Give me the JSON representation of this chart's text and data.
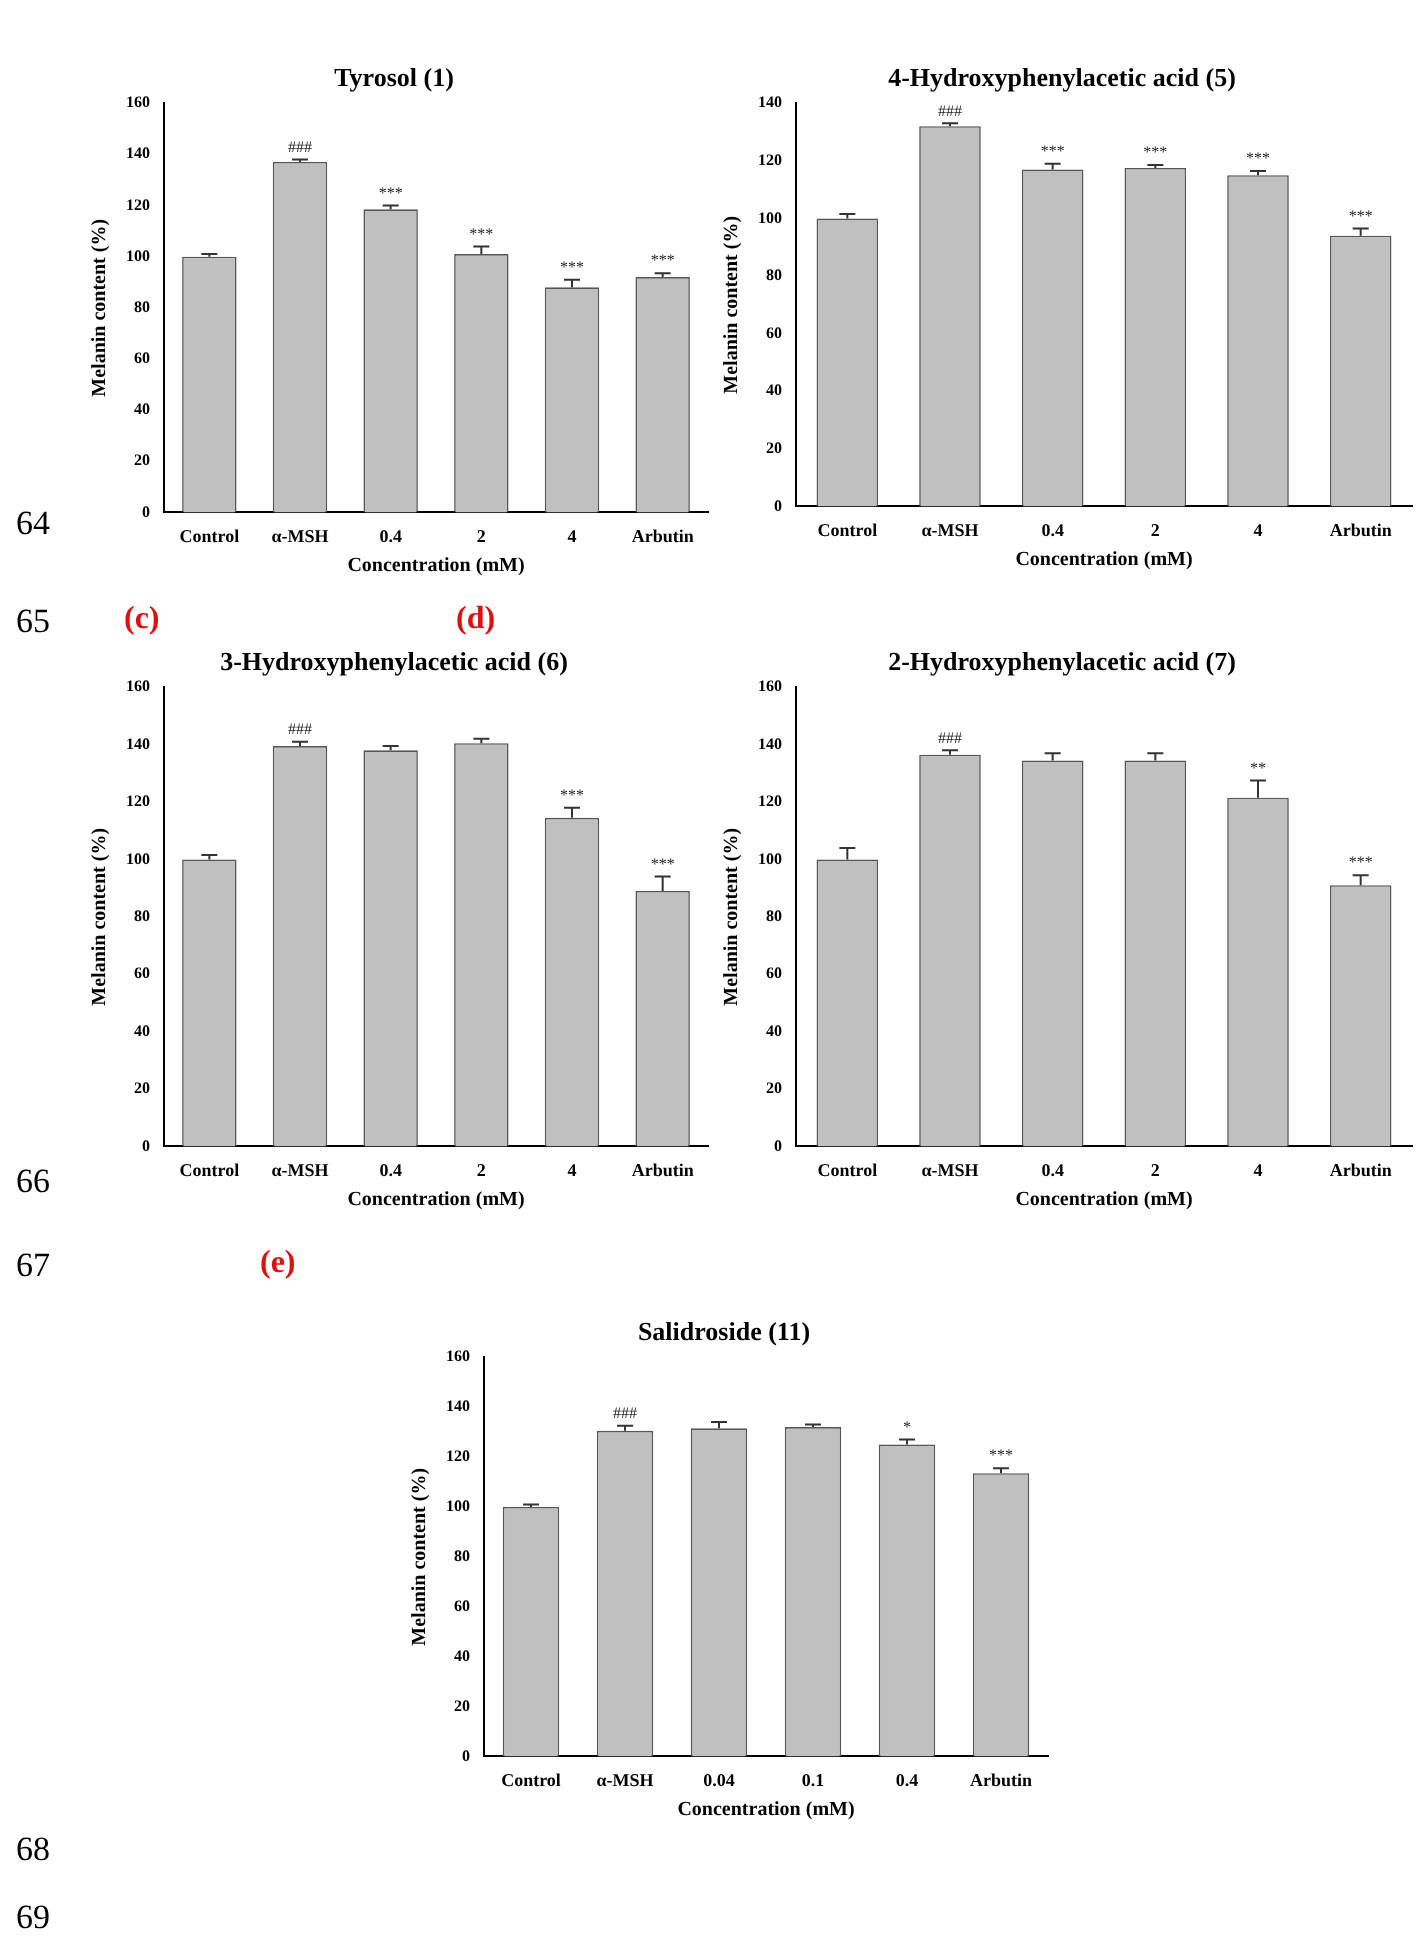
{
  "chart_data": [
    {
      "type": "bar",
      "title": "Tyrosol (1)",
      "xlabel": "Concentration (mM)",
      "ylabel": "Melanin content (%)",
      "categories": [
        "Control",
        "α-MSH",
        "0.4",
        "2",
        "4",
        "Arbutin"
      ],
      "values": [
        100,
        137,
        118.5,
        101,
        88,
        92
      ],
      "errors": [
        [
          100,
          101
        ],
        [
          137,
          138
        ],
        [
          118.5,
          120
        ],
        [
          101,
          104
        ],
        [
          88,
          91
        ],
        [
          92,
          93.5
        ]
      ],
      "color": "#c0c0c0",
      "ylim": [
        0,
        160
      ],
      "yticks": [
        0,
        20,
        40,
        60,
        80,
        100,
        120,
        140,
        160
      ],
      "annotations": [
        {
          "text": "###",
          "x": "α-MSH",
          "y": 138
        },
        {
          "text": "***",
          "x": "0.4",
          "y": 120
        },
        {
          "text": "***",
          "x": "2",
          "y": 104
        },
        {
          "text": "***",
          "x": "4",
          "y": 91
        },
        {
          "text": "***",
          "x": "Arbutin",
          "y": 93.5
        },
        "64"
      ]
    },
    {
      "type": "bar",
      "title": "4-Hydroxyphenylacetic acid (5)",
      "xlabel": "Concentration (mM)",
      "ylabel": "Melanin content (%)",
      "categories": [
        "Control",
        "α-MSH",
        "0.4",
        "2",
        "4",
        "Arbutin"
      ],
      "values": [
        100,
        132,
        117,
        117.5,
        115,
        94
      ],
      "errors": [
        [
          100,
          101.5
        ],
        [
          132,
          133
        ],
        [
          117,
          119
        ],
        [
          117.5,
          118.5
        ],
        [
          115,
          116.5
        ],
        [
          94,
          96.5
        ]
      ],
      "color": "#c0c0c0",
      "ylim": [
        0,
        140
      ],
      "yticks": [
        0,
        20,
        40,
        60,
        80,
        100,
        120,
        140
      ],
      "annotations": [
        {
          "text": "###",
          "x": "α-MSH",
          "y": 133
        },
        {
          "text": "***",
          "x": "0.4",
          "y": 119
        },
        {
          "text": "***",
          "x": "2",
          "y": 118.5
        },
        {
          "text": "***",
          "x": "4",
          "y": 116.5
        },
        {
          "text": "***",
          "x": "Arbutin",
          "y": 96.5
        }
      ]
    },
    {
      "type": "bar",
      "title": "3-Hydroxyphenylacetic acid (6)",
      "xlabel": "Concentration (mM)",
      "ylabel": "Melanin content (%)",
      "categories": [
        "Control",
        "α-MSH",
        "0.4",
        "2",
        "4",
        "Arbutin"
      ],
      "values": [
        100,
        139.5,
        138,
        140.5,
        114.5,
        89
      ],
      "errors": [
        [
          100,
          101.5
        ],
        [
          139.5,
          141
        ],
        [
          138,
          139.5
        ],
        [
          140.5,
          142
        ],
        [
          114.5,
          118
        ],
        [
          89,
          94
        ]
      ],
      "color": "#c0c0c0",
      "ylim": [
        0,
        160
      ],
      "yticks": [
        0,
        20,
        40,
        60,
        80,
        100,
        120,
        140,
        160
      ],
      "annotations": [
        {
          "text": "###",
          "x": "α-MSH",
          "y": 141
        },
        {
          "text": "***",
          "x": "4",
          "y": 118
        },
        {
          "text": "***",
          "x": "Arbutin",
          "y": 94
        },
        "65",
        "(c)",
        "66"
      ]
    },
    {
      "type": "bar",
      "title": "2-Hydroxyphenylacetic acid (7)",
      "xlabel": "Concentration (mM)",
      "ylabel": "Melanin content (%)",
      "categories": [
        "Control",
        "α-MSH",
        "0.4",
        "2",
        "4",
        "Arbutin"
      ],
      "values": [
        100,
        136.5,
        134.5,
        134.5,
        121.5,
        91
      ],
      "errors": [
        [
          100,
          104
        ],
        [
          136.5,
          138
        ],
        [
          134.5,
          137
        ],
        [
          134.5,
          137
        ],
        [
          121.5,
          127.5
        ],
        [
          91,
          94.5
        ]
      ],
      "color": "#c0c0c0",
      "ylim": [
        0,
        160
      ],
      "yticks": [
        0,
        20,
        40,
        60,
        80,
        100,
        120,
        140,
        160
      ],
      "annotations": [
        {
          "text": "###",
          "x": "α-MSH",
          "y": 138
        },
        {
          "text": "**",
          "x": "4",
          "y": 127.5
        },
        {
          "text": "***",
          "x": "Arbutin",
          "y": 94.5
        },
        "(d)"
      ]
    },
    {
      "type": "bar",
      "title": "Salidroside (11)",
      "xlabel": "Concentration (mM)",
      "ylabel": "Melanin content (%)",
      "categories": [
        "Control",
        "α-MSH",
        "0.04",
        "0.1",
        "0.4",
        "Arbutin"
      ],
      "values": [
        100,
        130.5,
        131.5,
        132,
        125,
        113.5
      ],
      "errors": [
        [
          100,
          101
        ],
        [
          130.5,
          132.5
        ],
        [
          131.5,
          134
        ],
        [
          132,
          133
        ],
        [
          125,
          127
        ],
        [
          113.5,
          115.5
        ]
      ],
      "color": "#c0c0c0",
      "ylim": [
        0,
        160
      ],
      "yticks": [
        0,
        20,
        40,
        60,
        80,
        100,
        120,
        140,
        160
      ],
      "annotations": [
        {
          "text": "###",
          "x": "α-MSH",
          "y": 132.5
        },
        {
          "text": "*",
          "x": "0.4",
          "y": 127
        },
        {
          "text": "***",
          "x": "Arbutin",
          "y": 115.5
        },
        "67",
        "(e)",
        "68",
        "69"
      ]
    }
  ]
}
